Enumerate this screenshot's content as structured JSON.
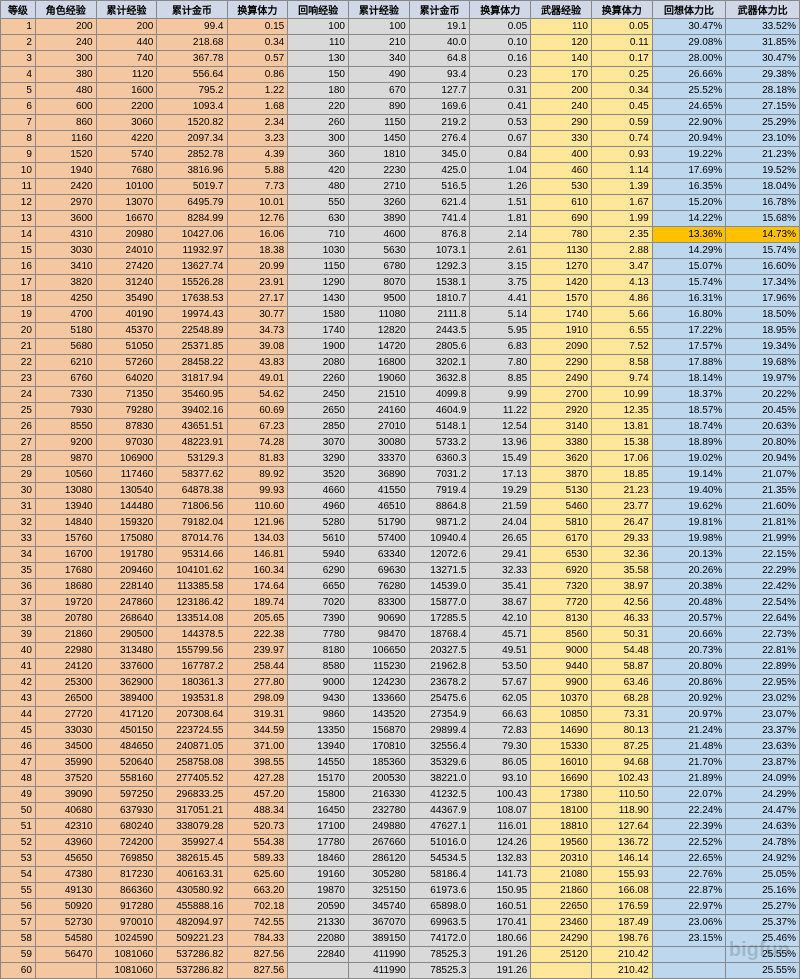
{
  "headers": [
    "等级",
    "角色经验",
    "累计经验",
    "累计金币",
    "换算体力",
    "回响经验",
    "累计经验",
    "累计金币",
    "换算体力",
    "武器经验",
    "换算体力",
    "回想体力比",
    "武器体力比"
  ],
  "colColors": [
    "tan",
    "tan",
    "tan",
    "tan",
    "tan",
    "gray",
    "gray",
    "gray",
    "gray",
    "yellow",
    "yellow",
    "blue",
    "blue"
  ],
  "highlightRow": 13,
  "rows": [
    [
      1,
      200,
      200,
      "99.4",
      "0.15",
      100,
      100,
      "19.1",
      "0.05",
      110,
      "0.05",
      "30.47%",
      "33.52%"
    ],
    [
      2,
      240,
      440,
      "218.68",
      "0.34",
      110,
      210,
      "40.0",
      "0.10",
      120,
      "0.11",
      "29.08%",
      "31.85%"
    ],
    [
      3,
      300,
      740,
      "367.78",
      "0.57",
      130,
      340,
      "64.8",
      "0.16",
      140,
      "0.17",
      "28.00%",
      "30.47%"
    ],
    [
      4,
      380,
      1120,
      "556.64",
      "0.86",
      150,
      490,
      "93.4",
      "0.23",
      170,
      "0.25",
      "26.66%",
      "29.38%"
    ],
    [
      5,
      480,
      1600,
      "795.2",
      "1.22",
      180,
      670,
      "127.7",
      "0.31",
      200,
      "0.34",
      "25.52%",
      "28.18%"
    ],
    [
      6,
      600,
      2200,
      "1093.4",
      "1.68",
      220,
      890,
      "169.6",
      "0.41",
      240,
      "0.45",
      "24.65%",
      "27.15%"
    ],
    [
      7,
      860,
      3060,
      "1520.82",
      "2.34",
      260,
      1150,
      "219.2",
      "0.53",
      290,
      "0.59",
      "22.90%",
      "25.29%"
    ],
    [
      8,
      1160,
      4220,
      "2097.34",
      "3.23",
      300,
      1450,
      "276.4",
      "0.67",
      330,
      "0.74",
      "20.94%",
      "23.10%"
    ],
    [
      9,
      1520,
      5740,
      "2852.78",
      "4.39",
      360,
      1810,
      "345.0",
      "0.84",
      400,
      "0.93",
      "19.22%",
      "21.23%"
    ],
    [
      10,
      1940,
      7680,
      "3816.96",
      "5.88",
      420,
      2230,
      "425.0",
      "1.04",
      460,
      "1.14",
      "17.69%",
      "19.52%"
    ],
    [
      11,
      2420,
      10100,
      "5019.7",
      "7.73",
      480,
      2710,
      "516.5",
      "1.26",
      530,
      "1.39",
      "16.35%",
      "18.04%"
    ],
    [
      12,
      2970,
      13070,
      "6495.79",
      "10.01",
      550,
      3260,
      "621.4",
      "1.51",
      610,
      "1.67",
      "15.20%",
      "16.78%"
    ],
    [
      13,
      3600,
      16670,
      "8284.99",
      "12.76",
      630,
      3890,
      "741.4",
      "1.81",
      690,
      "1.99",
      "14.22%",
      "15.68%"
    ],
    [
      14,
      4310,
      20980,
      "10427.06",
      "16.06",
      710,
      4600,
      "876.8",
      "2.14",
      780,
      "2.35",
      "13.36%",
      "14.73%"
    ],
    [
      15,
      3030,
      24010,
      "11932.97",
      "18.38",
      1030,
      5630,
      "1073.1",
      "2.61",
      1130,
      "2.88",
      "14.29%",
      "15.74%"
    ],
    [
      16,
      3410,
      27420,
      "13627.74",
      "20.99",
      1150,
      6780,
      "1292.3",
      "3.15",
      1270,
      "3.47",
      "15.07%",
      "16.60%"
    ],
    [
      17,
      3820,
      31240,
      "15526.28",
      "23.91",
      1290,
      8070,
      "1538.1",
      "3.75",
      1420,
      "4.13",
      "15.74%",
      "17.34%"
    ],
    [
      18,
      4250,
      35490,
      "17638.53",
      "27.17",
      1430,
      9500,
      "1810.7",
      "4.41",
      1570,
      "4.86",
      "16.31%",
      "17.96%"
    ],
    [
      19,
      4700,
      40190,
      "19974.43",
      "30.77",
      1580,
      11080,
      "2111.8",
      "5.14",
      1740,
      "5.66",
      "16.80%",
      "18.50%"
    ],
    [
      20,
      5180,
      45370,
      "22548.89",
      "34.73",
      1740,
      12820,
      "2443.5",
      "5.95",
      1910,
      "6.55",
      "17.22%",
      "18.95%"
    ],
    [
      21,
      5680,
      51050,
      "25371.85",
      "39.08",
      1900,
      14720,
      "2805.6",
      "6.83",
      2090,
      "7.52",
      "17.57%",
      "19.34%"
    ],
    [
      22,
      6210,
      57260,
      "28458.22",
      "43.83",
      2080,
      16800,
      "3202.1",
      "7.80",
      2290,
      "8.58",
      "17.88%",
      "19.68%"
    ],
    [
      23,
      6760,
      64020,
      "31817.94",
      "49.01",
      2260,
      19060,
      "3632.8",
      "8.85",
      2490,
      "9.74",
      "18.14%",
      "19.97%"
    ],
    [
      24,
      7330,
      71350,
      "35460.95",
      "54.62",
      2450,
      21510,
      "4099.8",
      "9.99",
      2700,
      "10.99",
      "18.37%",
      "20.22%"
    ],
    [
      25,
      7930,
      79280,
      "39402.16",
      "60.69",
      2650,
      24160,
      "4604.9",
      "11.22",
      2920,
      "12.35",
      "18.57%",
      "20.45%"
    ],
    [
      26,
      8550,
      87830,
      "43651.51",
      "67.23",
      2850,
      27010,
      "5148.1",
      "12.54",
      3140,
      "13.81",
      "18.74%",
      "20.63%"
    ],
    [
      27,
      9200,
      97030,
      "48223.91",
      "74.28",
      3070,
      30080,
      "5733.2",
      "13.96",
      3380,
      "15.38",
      "18.89%",
      "20.80%"
    ],
    [
      28,
      9870,
      106900,
      "53129.3",
      "81.83",
      3290,
      33370,
      "6360.3",
      "15.49",
      3620,
      "17.06",
      "19.02%",
      "20.94%"
    ],
    [
      29,
      10560,
      117460,
      "58377.62",
      "89.92",
      3520,
      36890,
      "7031.2",
      "17.13",
      3870,
      "18.85",
      "19.14%",
      "21.07%"
    ],
    [
      30,
      13080,
      130540,
      "64878.38",
      "99.93",
      4660,
      41550,
      "7919.4",
      "19.29",
      5130,
      "21.23",
      "19.40%",
      "21.35%"
    ],
    [
      31,
      13940,
      144480,
      "71806.56",
      "110.60",
      4960,
      46510,
      "8864.8",
      "21.59",
      5460,
      "23.77",
      "19.62%",
      "21.60%"
    ],
    [
      32,
      14840,
      159320,
      "79182.04",
      "121.96",
      5280,
      51790,
      "9871.2",
      "24.04",
      5810,
      "26.47",
      "19.81%",
      "21.81%"
    ],
    [
      33,
      15760,
      175080,
      "87014.76",
      "134.03",
      5610,
      57400,
      "10940.4",
      "26.65",
      6170,
      "29.33",
      "19.98%",
      "21.99%"
    ],
    [
      34,
      16700,
      191780,
      "95314.66",
      "146.81",
      5940,
      63340,
      "12072.6",
      "29.41",
      6530,
      "32.36",
      "20.13%",
      "22.15%"
    ],
    [
      35,
      17680,
      209460,
      "104101.62",
      "160.34",
      6290,
      69630,
      "13271.5",
      "32.33",
      6920,
      "35.58",
      "20.26%",
      "22.29%"
    ],
    [
      36,
      18680,
      228140,
      "113385.58",
      "174.64",
      6650,
      76280,
      "14539.0",
      "35.41",
      7320,
      "38.97",
      "20.38%",
      "22.42%"
    ],
    [
      37,
      19720,
      247860,
      "123186.42",
      "189.74",
      7020,
      83300,
      "15877.0",
      "38.67",
      7720,
      "42.56",
      "20.48%",
      "22.54%"
    ],
    [
      38,
      20780,
      268640,
      "133514.08",
      "205.65",
      7390,
      90690,
      "17285.5",
      "42.10",
      8130,
      "46.33",
      "20.57%",
      "22.64%"
    ],
    [
      39,
      21860,
      290500,
      "144378.5",
      "222.38",
      7780,
      98470,
      "18768.4",
      "45.71",
      8560,
      "50.31",
      "20.66%",
      "22.73%"
    ],
    [
      40,
      22980,
      313480,
      "155799.56",
      "239.97",
      8180,
      106650,
      "20327.5",
      "49.51",
      9000,
      "54.48",
      "20.73%",
      "22.81%"
    ],
    [
      41,
      24120,
      337600,
      "167787.2",
      "258.44",
      8580,
      115230,
      "21962.8",
      "53.50",
      9440,
      "58.87",
      "20.80%",
      "22.89%"
    ],
    [
      42,
      25300,
      362900,
      "180361.3",
      "277.80",
      9000,
      124230,
      "23678.2",
      "57.67",
      9900,
      "63.46",
      "20.86%",
      "22.95%"
    ],
    [
      43,
      26500,
      389400,
      "193531.8",
      "298.09",
      9430,
      133660,
      "25475.6",
      "62.05",
      10370,
      "68.28",
      "20.92%",
      "23.02%"
    ],
    [
      44,
      27720,
      417120,
      "207308.64",
      "319.31",
      9860,
      143520,
      "27354.9",
      "66.63",
      10850,
      "73.31",
      "20.97%",
      "23.07%"
    ],
    [
      45,
      33030,
      450150,
      "223724.55",
      "344.59",
      13350,
      156870,
      "29899.4",
      "72.83",
      14690,
      "80.13",
      "21.24%",
      "23.37%"
    ],
    [
      46,
      34500,
      484650,
      "240871.05",
      "371.00",
      13940,
      170810,
      "32556.4",
      "79.30",
      15330,
      "87.25",
      "21.48%",
      "23.63%"
    ],
    [
      47,
      35990,
      520640,
      "258758.08",
      "398.55",
      14550,
      185360,
      "35329.6",
      "86.05",
      16010,
      "94.68",
      "21.70%",
      "23.87%"
    ],
    [
      48,
      37520,
      558160,
      "277405.52",
      "427.28",
      15170,
      200530,
      "38221.0",
      "93.10",
      16690,
      "102.43",
      "21.89%",
      "24.09%"
    ],
    [
      49,
      39090,
      597250,
      "296833.25",
      "457.20",
      15800,
      216330,
      "41232.5",
      "100.43",
      17380,
      "110.50",
      "22.07%",
      "24.29%"
    ],
    [
      50,
      40680,
      637930,
      "317051.21",
      "488.34",
      16450,
      232780,
      "44367.9",
      "108.07",
      18100,
      "118.90",
      "22.24%",
      "24.47%"
    ],
    [
      51,
      42310,
      680240,
      "338079.28",
      "520.73",
      17100,
      249880,
      "47627.1",
      "116.01",
      18810,
      "127.64",
      "22.39%",
      "24.63%"
    ],
    [
      52,
      43960,
      724200,
      "359927.4",
      "554.38",
      17780,
      267660,
      "51016.0",
      "124.26",
      19560,
      "136.72",
      "22.52%",
      "24.78%"
    ],
    [
      53,
      45650,
      769850,
      "382615.45",
      "589.33",
      18460,
      286120,
      "54534.5",
      "132.83",
      20310,
      "146.14",
      "22.65%",
      "24.92%"
    ],
    [
      54,
      47380,
      817230,
      "406163.31",
      "625.60",
      19160,
      305280,
      "58186.4",
      "141.73",
      21080,
      "155.93",
      "22.76%",
      "25.05%"
    ],
    [
      55,
      49130,
      866360,
      "430580.92",
      "663.20",
      19870,
      325150,
      "61973.6",
      "150.95",
      21860,
      "166.08",
      "22.87%",
      "25.16%"
    ],
    [
      56,
      50920,
      917280,
      "455888.16",
      "702.18",
      20590,
      345740,
      "65898.0",
      "160.51",
      22650,
      "176.59",
      "22.97%",
      "25.27%"
    ],
    [
      57,
      52730,
      970010,
      "482094.97",
      "742.55",
      21330,
      367070,
      "69963.5",
      "170.41",
      23460,
      "187.49",
      "23.06%",
      "25.37%"
    ],
    [
      58,
      54580,
      1024590,
      "509221.23",
      "784.33",
      22080,
      389150,
      "74172.0",
      "180.66",
      24290,
      "198.76",
      "23.15%",
      "25.46%"
    ],
    [
      59,
      56470,
      1081060,
      "537286.82",
      "827.56",
      22840,
      411990,
      "78525.3",
      "191.26",
      25120,
      "210.42",
      "",
      "25.55%"
    ],
    [
      60,
      "",
      1081060,
      "537286.82",
      "827.56",
      "",
      411990,
      "78525.3",
      "191.26",
      "",
      "210.42",
      "",
      "25.55%"
    ]
  ],
  "watermark": "bigfun"
}
